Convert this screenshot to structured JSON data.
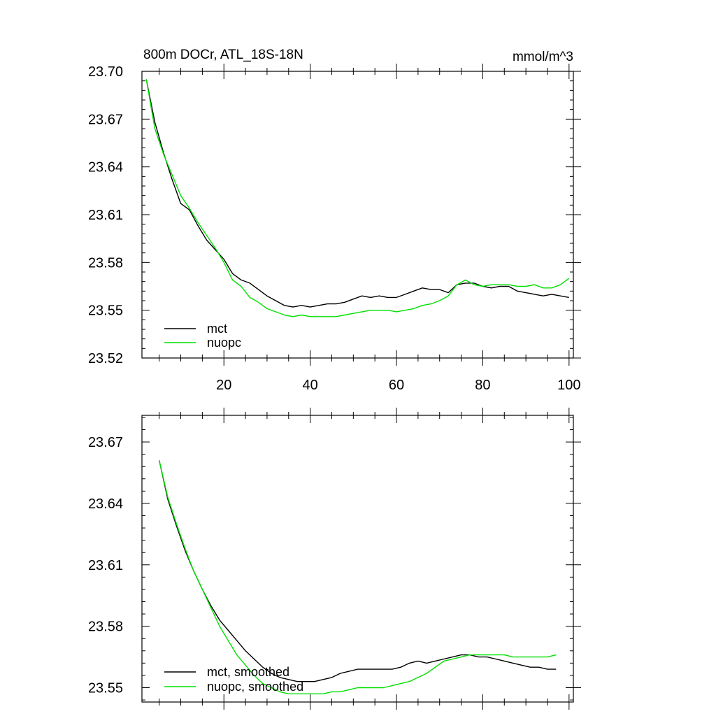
{
  "colors": {
    "mct": "#000000",
    "nuopc": "#00e000"
  },
  "chart_data": [
    {
      "type": "line",
      "title": "800m DOCr, ATL_18S-18N",
      "units": "mmol/m^3",
      "xlim": [
        1,
        101
      ],
      "ylim": [
        23.52,
        23.7
      ],
      "x_ticks": [
        20,
        40,
        60,
        80,
        100
      ],
      "x_tick_labels": [
        "20",
        "40",
        "60",
        "80",
        "100"
      ],
      "y_ticks": [
        23.52,
        23.55,
        23.58,
        23.61,
        23.64,
        23.67,
        23.7
      ],
      "y_tick_labels": [
        "23.52",
        "23.55",
        "23.58",
        "23.61",
        "23.64",
        "23.67",
        "23.70"
      ],
      "legend_position": "bottom-left",
      "series": [
        {
          "name": "mct",
          "color": "#000000",
          "x": [
            2,
            4,
            6,
            8,
            10,
            12,
            14,
            16,
            18,
            20,
            22,
            24,
            26,
            28,
            30,
            32,
            34,
            36,
            38,
            40,
            42,
            44,
            46,
            48,
            50,
            52,
            54,
            56,
            58,
            60,
            62,
            64,
            66,
            68,
            70,
            72,
            74,
            76,
            78,
            80,
            82,
            84,
            86,
            88,
            90,
            92,
            94,
            96,
            98,
            100
          ],
          "values": [
            23.695,
            23.668,
            23.649,
            23.632,
            23.617,
            23.613,
            23.603,
            23.594,
            23.588,
            23.582,
            23.573,
            23.569,
            23.567,
            23.563,
            23.559,
            23.556,
            23.553,
            23.552,
            23.553,
            23.552,
            23.553,
            23.554,
            23.554,
            23.555,
            23.557,
            23.559,
            23.558,
            23.559,
            23.558,
            23.558,
            23.56,
            23.562,
            23.564,
            23.563,
            23.563,
            23.561,
            23.566,
            23.567,
            23.567,
            23.565,
            23.564,
            23.565,
            23.565,
            23.562,
            23.561,
            23.56,
            23.559,
            23.56,
            23.559,
            23.558
          ]
        },
        {
          "name": "nuopc",
          "color": "#00e000",
          "x": [
            2,
            4,
            6,
            8,
            10,
            12,
            14,
            16,
            18,
            20,
            22,
            24,
            26,
            28,
            30,
            32,
            34,
            36,
            38,
            40,
            42,
            44,
            46,
            48,
            50,
            52,
            54,
            56,
            58,
            60,
            62,
            64,
            66,
            68,
            70,
            72,
            74,
            76,
            78,
            80,
            82,
            84,
            86,
            88,
            90,
            92,
            94,
            96,
            98,
            100
          ],
          "values": [
            23.695,
            23.664,
            23.648,
            23.635,
            23.622,
            23.614,
            23.605,
            23.597,
            23.589,
            23.58,
            23.569,
            23.565,
            23.558,
            23.555,
            23.551,
            23.549,
            23.547,
            23.546,
            23.547,
            23.546,
            23.546,
            23.546,
            23.546,
            23.547,
            23.548,
            23.549,
            23.55,
            23.55,
            23.55,
            23.549,
            23.55,
            23.551,
            23.553,
            23.554,
            23.556,
            23.559,
            23.566,
            23.569,
            23.566,
            23.565,
            23.566,
            23.566,
            23.566,
            23.565,
            23.565,
            23.566,
            23.564,
            23.564,
            23.566,
            23.57
          ]
        }
      ],
      "legend": [
        {
          "label": "mct",
          "color": "#000000"
        },
        {
          "label": "nuopc",
          "color": "#00e000"
        }
      ]
    },
    {
      "type": "line",
      "xlim": [
        1,
        101
      ],
      "ylim": [
        23.543,
        23.683
      ],
      "x_ticks": [
        20,
        40,
        60,
        80,
        100
      ],
      "y_ticks": [
        23.55,
        23.58,
        23.61,
        23.64,
        23.67
      ],
      "y_tick_labels": [
        "23.55",
        "23.58",
        "23.61",
        "23.64",
        "23.67"
      ],
      "legend_position": "bottom-left",
      "series": [
        {
          "name": "mct, smoothed",
          "color": "#000000",
          "x": [
            5,
            7,
            9,
            11,
            13,
            15,
            17,
            19,
            21,
            23,
            25,
            27,
            29,
            31,
            33,
            35,
            37,
            39,
            41,
            43,
            45,
            47,
            49,
            51,
            53,
            55,
            57,
            59,
            61,
            63,
            65,
            67,
            69,
            71,
            73,
            75,
            77,
            79,
            81,
            83,
            85,
            87,
            89,
            91,
            93,
            95,
            97
          ],
          "values": [
            23.661,
            23.642,
            23.629,
            23.617,
            23.607,
            23.598,
            23.59,
            23.583,
            23.578,
            23.573,
            23.568,
            23.564,
            23.56,
            23.557,
            23.555,
            23.554,
            23.553,
            23.553,
            23.553,
            23.554,
            23.555,
            23.557,
            23.558,
            23.559,
            23.559,
            23.559,
            23.559,
            23.559,
            23.56,
            23.562,
            23.563,
            23.562,
            23.563,
            23.564,
            23.565,
            23.566,
            23.566,
            23.565,
            23.565,
            23.564,
            23.563,
            23.562,
            23.561,
            23.56,
            23.56,
            23.559,
            23.559
          ]
        },
        {
          "name": "nuopc, smoothed",
          "color": "#00e000",
          "x": [
            5,
            7,
            9,
            11,
            13,
            15,
            17,
            19,
            21,
            23,
            25,
            27,
            29,
            31,
            33,
            35,
            37,
            39,
            41,
            43,
            45,
            47,
            49,
            51,
            53,
            55,
            57,
            59,
            61,
            63,
            65,
            67,
            69,
            71,
            73,
            75,
            77,
            79,
            81,
            83,
            85,
            87,
            89,
            91,
            93,
            95,
            97
          ],
          "values": [
            23.661,
            23.643,
            23.63,
            23.618,
            23.607,
            23.598,
            23.589,
            23.58,
            23.573,
            23.566,
            23.561,
            23.556,
            23.552,
            23.55,
            23.548,
            23.547,
            23.547,
            23.547,
            23.547,
            23.547,
            23.548,
            23.548,
            23.549,
            23.55,
            23.55,
            23.55,
            23.55,
            23.551,
            23.552,
            23.553,
            23.555,
            23.557,
            23.56,
            23.563,
            23.564,
            23.565,
            23.566,
            23.566,
            23.566,
            23.566,
            23.566,
            23.565,
            23.565,
            23.565,
            23.565,
            23.565,
            23.566
          ]
        }
      ],
      "legend": [
        {
          "label": "mct, smoothed",
          "color": "#000000"
        },
        {
          "label": "nuopc, smoothed",
          "color": "#00e000"
        }
      ]
    }
  ]
}
